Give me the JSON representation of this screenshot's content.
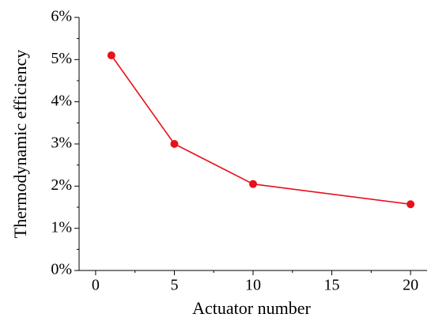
{
  "chart_data": {
    "type": "line",
    "x_label": "Actuator number",
    "y_label": "Thermodynamic efficiency",
    "x": [
      1,
      5,
      10,
      20
    ],
    "series": [
      {
        "name": "Thermodynamic efficiency",
        "color": "#e8101a",
        "values": [
          5.1,
          3.0,
          2.05,
          1.57
        ]
      }
    ],
    "xlim": [
      -1.05,
      21.05
    ],
    "xticks": [
      0,
      5,
      10,
      15,
      20
    ],
    "ylim": [
      0,
      6
    ],
    "yticks": [
      {
        "value": 0,
        "label": "0%"
      },
      {
        "value": 1,
        "label": "1%"
      },
      {
        "value": 2,
        "label": "2%"
      },
      {
        "value": 3,
        "label": "3%"
      },
      {
        "value": 4,
        "label": "4%"
      },
      {
        "value": 5,
        "label": "5%"
      },
      {
        "value": 6,
        "label": "6%"
      }
    ],
    "grid": false
  }
}
